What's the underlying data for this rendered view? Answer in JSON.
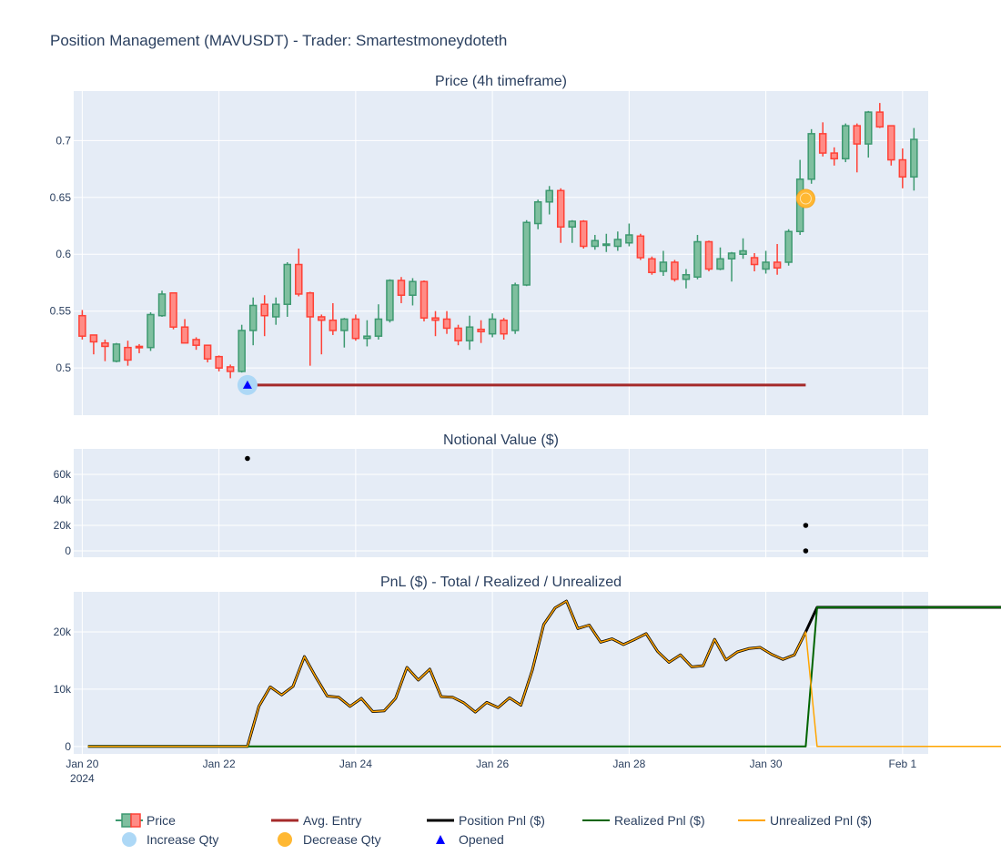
{
  "title": "Position Management (MAVUSDT) - Trader: Smartestmoneydoteth",
  "colors": {
    "plot_bg": "#e5ecf6",
    "grid": "#ffffff",
    "increasing": "#3d9970",
    "increasing_fill": "#7fbf9f",
    "decreasing": "#ff4136",
    "decreasing_fill": "#ff8c86",
    "avg_entry": "#a52a2a",
    "position_pnl": "#000000",
    "realized_pnl": "#006400",
    "unrealized_pnl": "#ffa500",
    "increase_marker": "#add8f6",
    "decrease_marker": "#ffb833",
    "opened_marker": "#0000ff"
  },
  "chart_data": [
    {
      "type": "candlestick",
      "title": "Price (4h timeframe)",
      "x_start": "2024-01-20 00:00",
      "interval_hours": 4,
      "ohlc": [
        [
          0.546,
          0.551,
          0.525,
          0.528
        ],
        [
          0.529,
          0.528,
          0.512,
          0.523
        ],
        [
          0.522,
          0.525,
          0.506,
          0.519
        ],
        [
          0.506,
          0.522,
          0.505,
          0.521
        ],
        [
          0.518,
          0.524,
          0.502,
          0.507
        ],
        [
          0.519,
          0.521,
          0.513,
          0.518
        ],
        [
          0.518,
          0.549,
          0.515,
          0.547
        ],
        [
          0.546,
          0.568,
          0.545,
          0.565
        ],
        [
          0.566,
          0.566,
          0.534,
          0.536
        ],
        [
          0.536,
          0.543,
          0.523,
          0.522
        ],
        [
          0.525,
          0.527,
          0.516,
          0.52
        ],
        [
          0.52,
          0.52,
          0.505,
          0.508
        ],
        [
          0.51,
          0.511,
          0.497,
          0.5
        ],
        [
          0.501,
          0.503,
          0.491,
          0.497
        ],
        [
          0.497,
          0.538,
          0.496,
          0.533
        ],
        [
          0.533,
          0.562,
          0.52,
          0.555
        ],
        [
          0.556,
          0.564,
          0.528,
          0.546
        ],
        [
          0.545,
          0.562,
          0.538,
          0.556
        ],
        [
          0.556,
          0.593,
          0.545,
          0.591
        ],
        [
          0.591,
          0.605,
          0.563,
          0.565
        ],
        [
          0.566,
          0.567,
          0.502,
          0.545
        ],
        [
          0.545,
          0.547,
          0.512,
          0.542
        ],
        [
          0.542,
          0.557,
          0.529,
          0.533
        ],
        [
          0.533,
          0.544,
          0.518,
          0.543
        ],
        [
          0.543,
          0.547,
          0.524,
          0.526
        ],
        [
          0.526,
          0.542,
          0.519,
          0.528
        ],
        [
          0.528,
          0.556,
          0.525,
          0.543
        ],
        [
          0.542,
          0.578,
          0.54,
          0.577
        ],
        [
          0.577,
          0.58,
          0.557,
          0.564
        ],
        [
          0.564,
          0.579,
          0.555,
          0.576
        ],
        [
          0.576,
          0.577,
          0.541,
          0.544
        ],
        [
          0.544,
          0.55,
          0.528,
          0.542
        ],
        [
          0.543,
          0.55,
          0.53,
          0.535
        ],
        [
          0.535,
          0.538,
          0.52,
          0.524
        ],
        [
          0.524,
          0.546,
          0.516,
          0.536
        ],
        [
          0.534,
          0.542,
          0.522,
          0.532
        ],
        [
          0.53,
          0.548,
          0.527,
          0.543
        ],
        [
          0.542,
          0.544,
          0.525,
          0.53
        ],
        [
          0.533,
          0.575,
          0.53,
          0.573
        ],
        [
          0.573,
          0.63,
          0.572,
          0.628
        ],
        [
          0.627,
          0.648,
          0.622,
          0.646
        ],
        [
          0.646,
          0.66,
          0.635,
          0.656
        ],
        [
          0.656,
          0.658,
          0.61,
          0.624
        ],
        [
          0.624,
          0.63,
          0.61,
          0.629
        ],
        [
          0.629,
          0.63,
          0.605,
          0.607
        ],
        [
          0.607,
          0.617,
          0.604,
          0.612
        ],
        [
          0.608,
          0.618,
          0.602,
          0.609
        ],
        [
          0.607,
          0.62,
          0.603,
          0.613
        ],
        [
          0.61,
          0.627,
          0.607,
          0.617
        ],
        [
          0.616,
          0.618,
          0.595,
          0.597
        ],
        [
          0.596,
          0.598,
          0.582,
          0.584
        ],
        [
          0.585,
          0.603,
          0.581,
          0.593
        ],
        [
          0.593,
          0.595,
          0.576,
          0.578
        ],
        [
          0.578,
          0.587,
          0.57,
          0.582
        ],
        [
          0.58,
          0.617,
          0.578,
          0.611
        ],
        [
          0.611,
          0.612,
          0.585,
          0.587
        ],
        [
          0.587,
          0.606,
          0.586,
          0.596
        ],
        [
          0.596,
          0.602,
          0.576,
          0.601
        ],
        [
          0.6,
          0.614,
          0.596,
          0.603
        ],
        [
          0.597,
          0.601,
          0.585,
          0.591
        ],
        [
          0.587,
          0.603,
          0.583,
          0.593
        ],
        [
          0.593,
          0.609,
          0.582,
          0.588
        ],
        [
          0.593,
          0.622,
          0.59,
          0.62
        ],
        [
          0.62,
          0.683,
          0.617,
          0.666
        ],
        [
          0.666,
          0.71,
          0.662,
          0.706
        ],
        [
          0.706,
          0.716,
          0.686,
          0.689
        ],
        [
          0.689,
          0.694,
          0.678,
          0.684
        ],
        [
          0.684,
          0.715,
          0.681,
          0.713
        ],
        [
          0.713,
          0.715,
          0.672,
          0.697
        ],
        [
          0.697,
          0.726,
          0.685,
          0.725
        ],
        [
          0.725,
          0.733,
          0.711,
          0.712
        ],
        [
          0.713,
          0.713,
          0.678,
          0.683
        ],
        [
          0.683,
          0.693,
          0.658,
          0.668
        ],
        [
          0.668,
          0.711,
          0.656,
          0.701
        ]
      ],
      "avg_entry": {
        "x_start": "2024-01-22 10:00",
        "x_end": "2024-01-30 14:00",
        "y": 0.485
      },
      "increase_qty_markers": [
        {
          "x": "2024-01-22 10:00",
          "y": 0.485
        }
      ],
      "decrease_qty_markers": [
        {
          "x": "2024-01-30 14:00",
          "y": 0.649
        }
      ],
      "opened_markers": [
        {
          "x": "2024-01-22 10:00",
          "y": 0.485
        }
      ],
      "y_ticks": [
        "0.5",
        "0.55",
        "0.6",
        "0.65",
        "0.7"
      ],
      "y_tick_values": [
        0.5,
        0.55,
        0.6,
        0.65,
        0.7
      ],
      "ylim": [
        0.4585,
        0.7435
      ]
    },
    {
      "type": "scatter",
      "title": "Notional Value ($)",
      "points": [
        {
          "x": "2024-01-22 10:00",
          "y": 72500
        },
        {
          "x": "2024-01-30 14:00",
          "y": 20000
        },
        {
          "x": "2024-01-30 14:00",
          "y": 0
        }
      ],
      "y_ticks": [
        "0",
        "20k",
        "40k",
        "60k"
      ],
      "y_tick_values": [
        0,
        20000,
        40000,
        60000
      ],
      "ylim": [
        -5000,
        80000
      ]
    },
    {
      "type": "line",
      "title": "PnL ($) - Total / Realized / Unrealized",
      "x_start": "2024-01-20 02:00",
      "interval_hours": 4,
      "unrealized": [
        0,
        0,
        0,
        0,
        0,
        0,
        0,
        0,
        0,
        0,
        0,
        0,
        0,
        0,
        0,
        7000,
        10400,
        9000,
        10500,
        15700,
        12100,
        8800,
        8600,
        7000,
        8400,
        6100,
        6200,
        8400,
        13800,
        11600,
        13500,
        8700,
        8600,
        7600,
        6000,
        7700,
        6800,
        8500,
        7200,
        13300,
        21300,
        24200,
        25400,
        20600,
        21200,
        18200,
        18800,
        17800,
        18700,
        19700,
        16600,
        14700,
        16000,
        13900,
        14100,
        18700,
        15100,
        16500,
        17100,
        17300,
        16100,
        15200,
        16000,
        20000,
        0,
        0,
        0,
        0,
        0,
        0,
        0,
        0,
        0,
        0,
        0,
        0,
        0,
        0,
        0,
        0,
        0,
        0
      ],
      "realized": [
        0,
        0,
        0,
        0,
        0,
        0,
        0,
        0,
        0,
        0,
        0,
        0,
        0,
        0,
        0,
        0,
        0,
        0,
        0,
        0,
        0,
        0,
        0,
        0,
        0,
        0,
        0,
        0,
        0,
        0,
        0,
        0,
        0,
        0,
        0,
        0,
        0,
        0,
        0,
        0,
        0,
        0,
        0,
        0,
        0,
        0,
        0,
        0,
        0,
        0,
        0,
        0,
        0,
        0,
        0,
        0,
        0,
        0,
        0,
        0,
        0,
        0,
        0,
        0,
        24300,
        24300,
        24300,
        24300,
        24300,
        24300,
        24300,
        24300,
        24300,
        24300,
        24300,
        24300,
        24300,
        24300,
        24300,
        24300,
        24300,
        24300
      ],
      "y_ticks": [
        "0",
        "10k",
        "20k"
      ],
      "y_tick_values": [
        0,
        10000,
        20000
      ],
      "ylim": [
        -1300,
        27000
      ],
      "x_ticks": [
        "Jan 20",
        "Jan 22",
        "Jan 24",
        "Jan 26",
        "Jan 28",
        "Jan 30",
        "Feb 1"
      ],
      "x_tick_year": "2024"
    }
  ],
  "legend": [
    {
      "name": "Price"
    },
    {
      "name": "Avg. Entry"
    },
    {
      "name": "Position Pnl ($)"
    },
    {
      "name": "Realized Pnl ($)"
    },
    {
      "name": "Unrealized Pnl ($)"
    },
    {
      "name": "Increase Qty"
    },
    {
      "name": "Decrease Qty"
    },
    {
      "name": "Opened"
    }
  ]
}
